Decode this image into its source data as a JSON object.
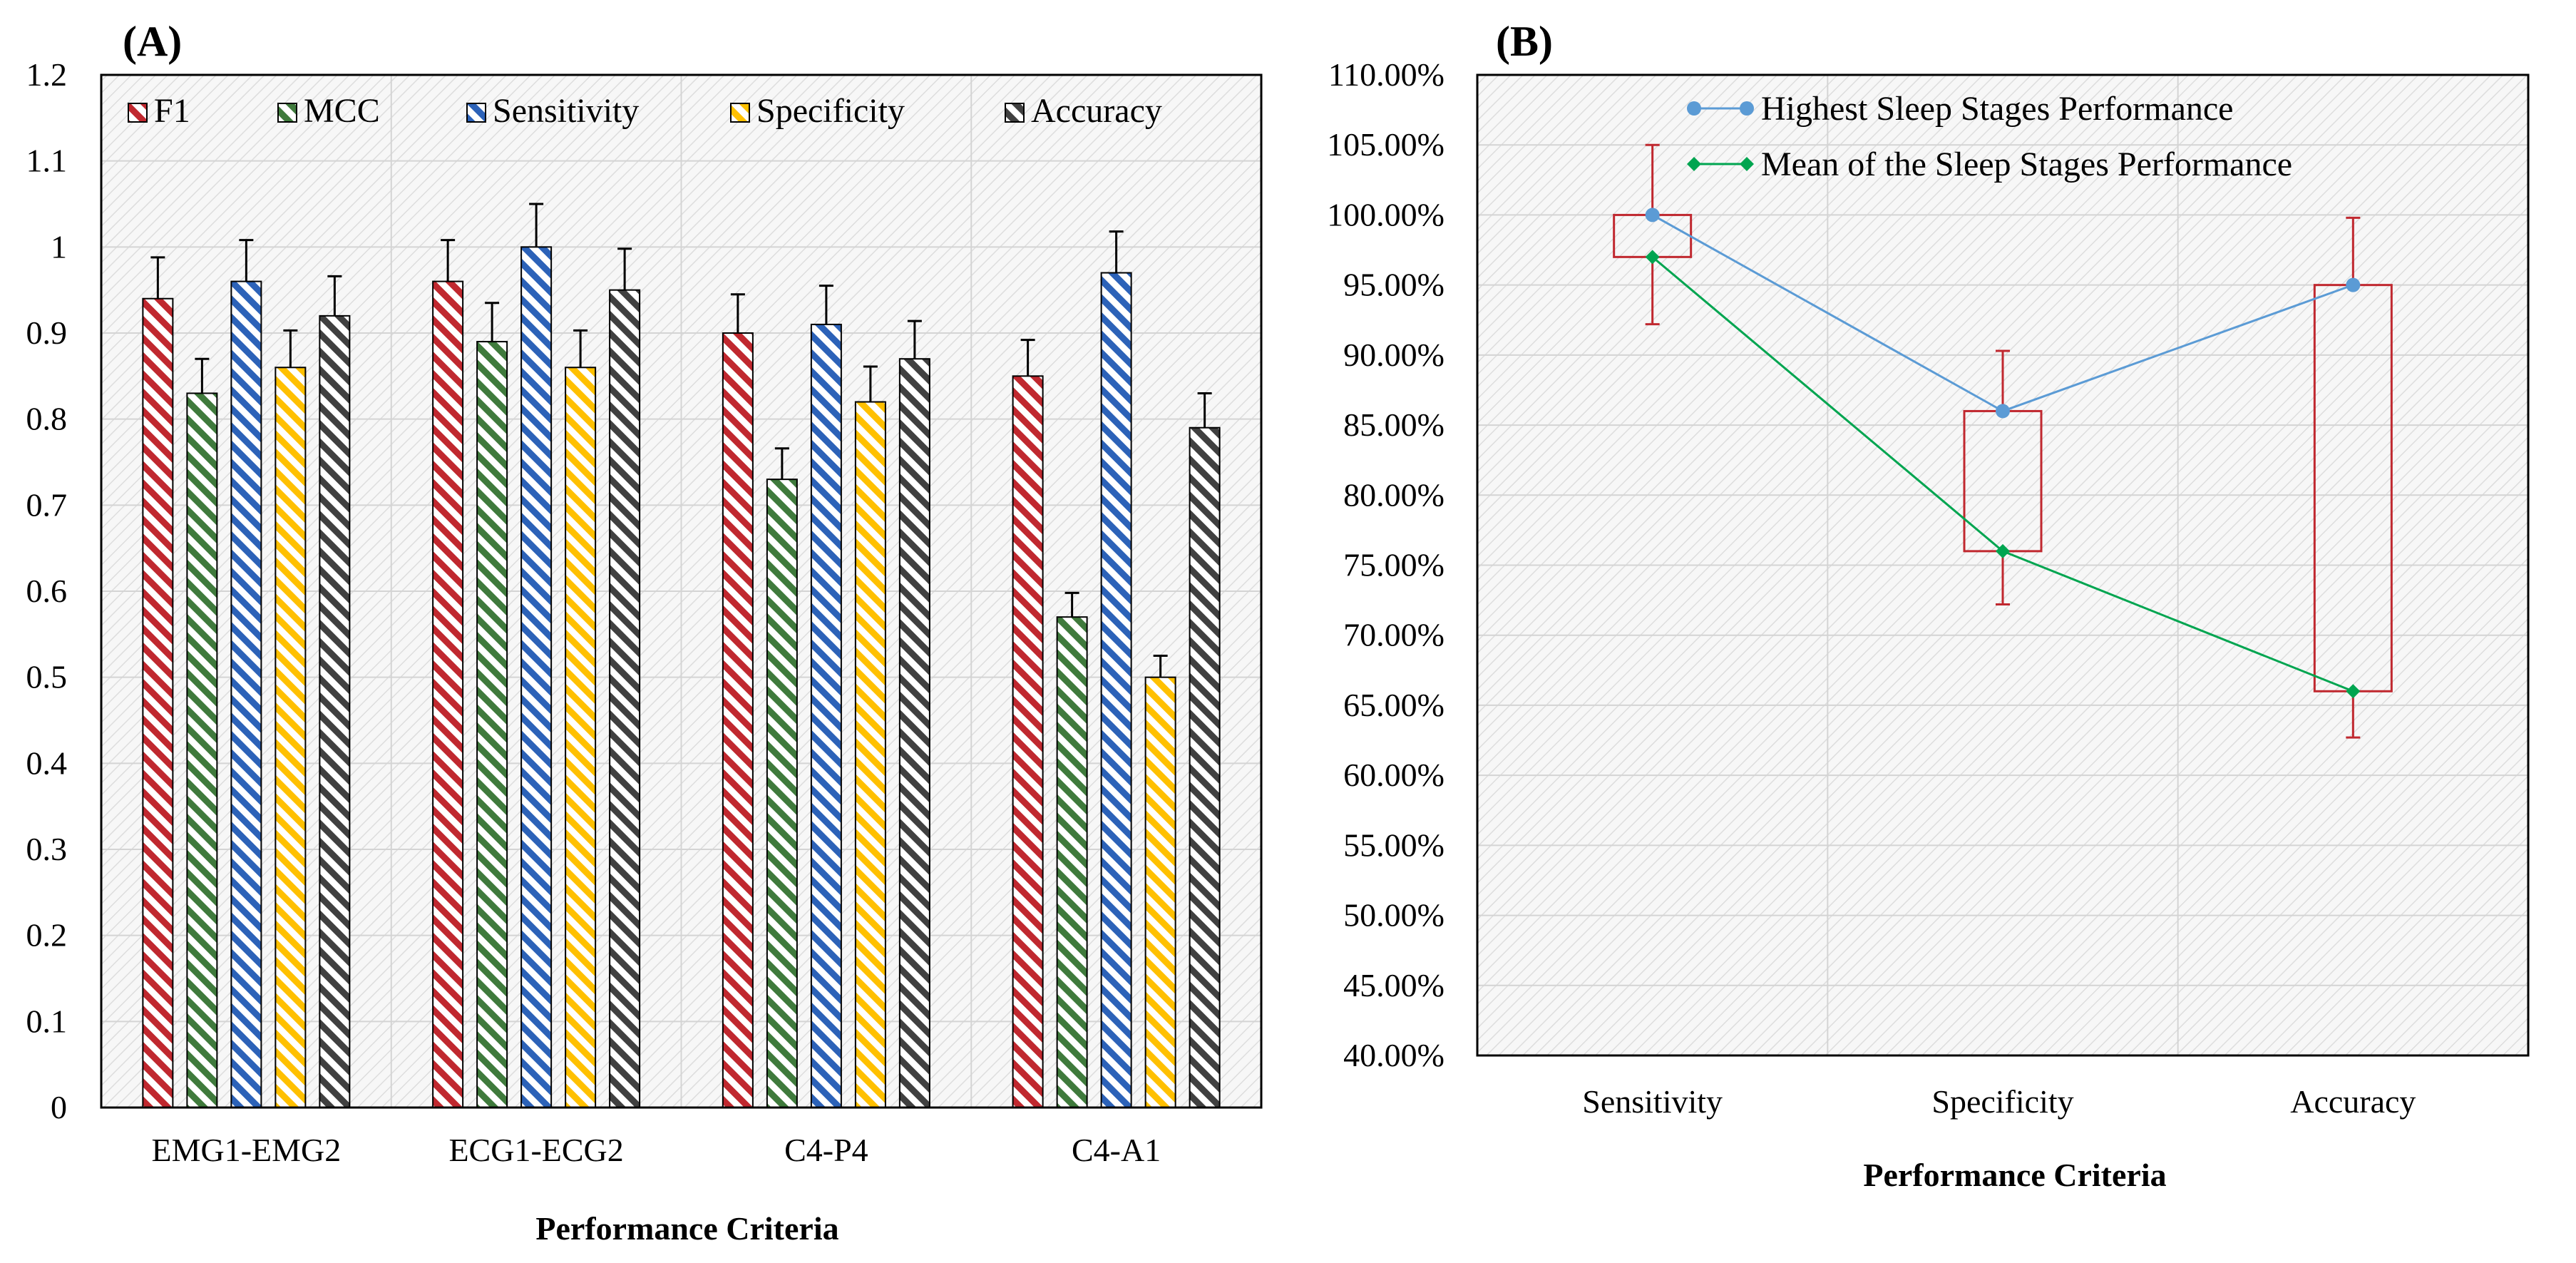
{
  "chart_data": [
    {
      "id": "A",
      "panel_label": "(A)",
      "type": "bar",
      "title": "",
      "xlabel": "Performance Criteria",
      "ylabel": "",
      "ylim": [
        0,
        1.2
      ],
      "ytick_labels": [
        "0",
        "0.1",
        "0.2",
        "0.3",
        "0.4",
        "0.5",
        "0.6",
        "0.7",
        "0.8",
        "0.9",
        "1",
        "1.1",
        "1.2"
      ],
      "grid": true,
      "legend_position": "top",
      "categories": [
        "EMG1-EMG2",
        "ECG1-ECG2",
        "C4-P4",
        "C4-A1"
      ],
      "series": [
        {
          "name": "F1",
          "color": "#c0282f",
          "values": [
            0.94,
            0.96,
            0.9,
            0.85
          ],
          "errors": [
            0.048,
            0.048,
            0.045,
            0.042
          ]
        },
        {
          "name": "MCC",
          "color": "#3f7a3c",
          "values": [
            0.83,
            0.89,
            0.73,
            0.57
          ],
          "errors": [
            0.04,
            0.045,
            0.036,
            0.028
          ]
        },
        {
          "name": "Sensitivity",
          "color": "#2c62b8",
          "values": [
            0.96,
            1.0,
            0.91,
            0.97
          ],
          "errors": [
            0.048,
            0.05,
            0.045,
            0.048
          ]
        },
        {
          "name": "Specificity",
          "color": "#ffc000",
          "values": [
            0.86,
            0.86,
            0.82,
            0.5
          ],
          "errors": [
            0.043,
            0.043,
            0.041,
            0.025
          ]
        },
        {
          "name": "Accuracy",
          "color": "#404040",
          "values": [
            0.92,
            0.95,
            0.87,
            0.79
          ],
          "errors": [
            0.046,
            0.048,
            0.044,
            0.04
          ]
        }
      ]
    },
    {
      "id": "B",
      "panel_label": "(B)",
      "type": "line",
      "title": "",
      "xlabel": "Performance Criteria",
      "ylabel": "",
      "ylim": [
        0.4,
        1.1
      ],
      "ytick_labels": [
        "40.00%",
        "45.00%",
        "50.00%",
        "55.00%",
        "60.00%",
        "65.00%",
        "70.00%",
        "75.00%",
        "80.00%",
        "85.00%",
        "90.00%",
        "95.00%",
        "100.00%",
        "105.00%",
        "110.00%"
      ],
      "grid": true,
      "legend_position": "top",
      "categories": [
        "Sensitivity",
        "Specificity",
        "Accuracy"
      ],
      "series": [
        {
          "name": "Highest Sleep Stages Performance",
          "color": "#5b9bd5",
          "values": [
            1.0,
            0.86,
            0.95
          ]
        },
        {
          "name": "Mean of the Sleep Stages Performance",
          "color": "#00a550",
          "values": [
            0.97,
            0.76,
            0.66
          ]
        }
      ],
      "boxes": {
        "color": "#c0282f",
        "low": [
          0.97,
          0.76,
          0.66
        ],
        "high": [
          1.0,
          0.86,
          0.95
        ],
        "whisker_low": [
          0.922,
          0.722,
          0.627
        ],
        "whisker_high": [
          1.05,
          0.903,
          0.998
        ]
      }
    }
  ]
}
